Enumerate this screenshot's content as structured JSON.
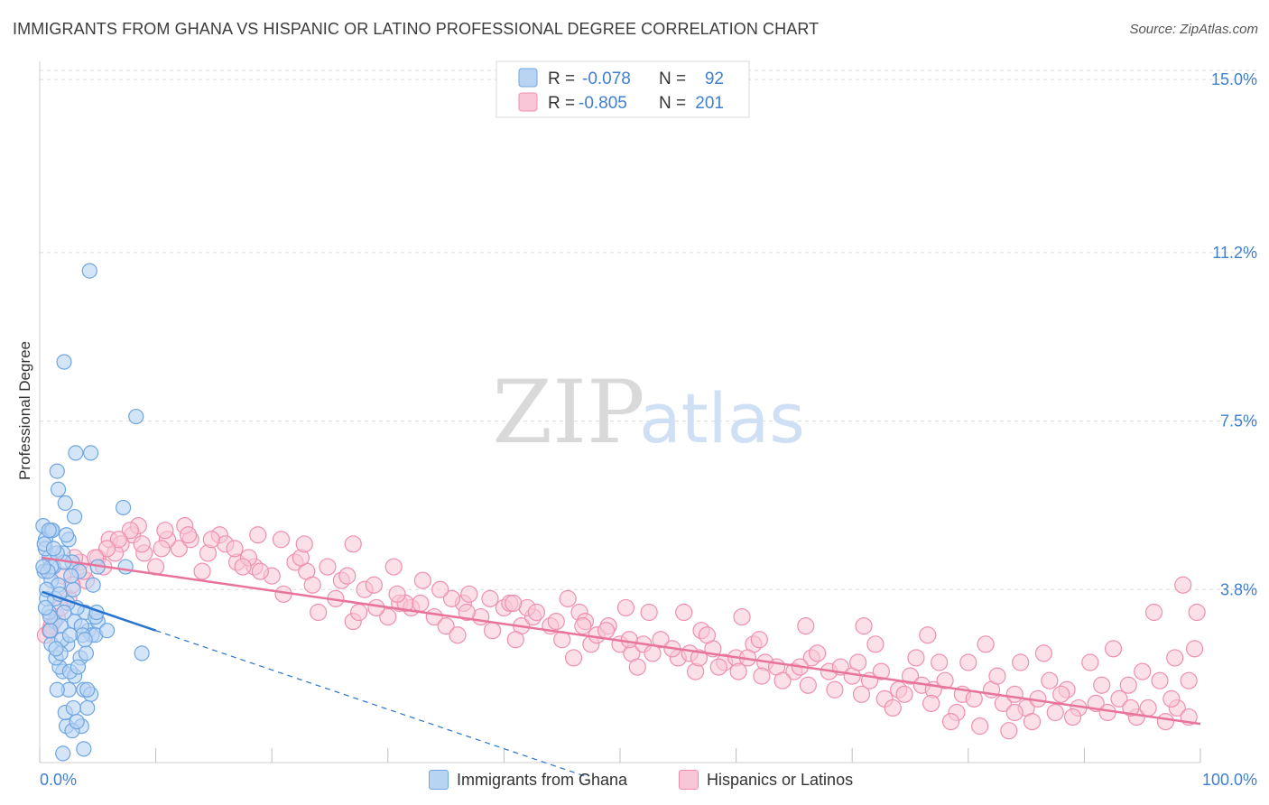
{
  "title": "IMMIGRANTS FROM GHANA VS HISPANIC OR LATINO PROFESSIONAL DEGREE CORRELATION CHART",
  "source": "Source: ZipAtlas.com",
  "watermark": {
    "zip": "ZIP",
    "atlas": "atlas"
  },
  "legend": {
    "r_label": "R =",
    "n_label": "N =",
    "rows": [
      {
        "r": "-0.078",
        "n": "92"
      },
      {
        "r": "-0.805",
        "n": "201"
      }
    ]
  },
  "bottom_legend": [
    "Immigrants from Ghana",
    "Hispanics or Latinos"
  ],
  "colors": {
    "blue_fill": "#b9d4f3",
    "blue_stroke": "#6ea6e2",
    "blue_line": "#2874d0",
    "pink_fill": "#f8c6d6",
    "pink_stroke": "#ef8fb0",
    "pink_line": "#e8739b",
    "tick_text": "#3f7fd0",
    "grid": "#dcdcdc"
  },
  "chart_data": {
    "type": "scatter",
    "title": "IMMIGRANTS FROM GHANA VS HISPANIC OR LATINO PROFESSIONAL DEGREE CORRELATION CHART",
    "xlabel": "",
    "ylabel": "Professional Degree",
    "xlim": [
      0,
      100
    ],
    "ylim": [
      0,
      15.4
    ],
    "x_tick_labels": [
      "0.0%",
      "100.0%"
    ],
    "y_ticks": [
      {
        "value": 3.8,
        "label": "3.8%"
      },
      {
        "value": 7.5,
        "label": "7.5%"
      },
      {
        "value": 11.2,
        "label": "11.2%"
      },
      {
        "value": 15.0,
        "label": "15.0%"
      }
    ],
    "series": [
      {
        "name": "Immigrants from Ghana",
        "R": -0.078,
        "N": 92,
        "trend": {
          "x0": 0.2,
          "y0": 3.75,
          "x1": 10.0,
          "y1": 2.9,
          "dash_to_x": 47.0,
          "dash_to_y": -0.3
        },
        "points": [
          [
            0.3,
            5.2
          ],
          [
            0.5,
            4.9
          ],
          [
            0.8,
            4.5
          ],
          [
            1.0,
            5.1
          ],
          [
            0.4,
            4.2
          ],
          [
            0.6,
            3.6
          ],
          [
            1.2,
            4.3
          ],
          [
            1.5,
            6.4
          ],
          [
            1.6,
            6.0
          ],
          [
            2.2,
            5.7
          ],
          [
            2.0,
            4.6
          ],
          [
            1.0,
            4.0
          ],
          [
            1.3,
            3.1
          ],
          [
            2.5,
            4.9
          ],
          [
            3.0,
            5.4
          ],
          [
            2.8,
            4.4
          ],
          [
            3.4,
            4.2
          ],
          [
            3.9,
            3.3
          ],
          [
            4.2,
            2.9
          ],
          [
            4.5,
            2.8
          ],
          [
            3.5,
            2.3
          ],
          [
            2.0,
            2.0
          ],
          [
            2.5,
            1.6
          ],
          [
            3.0,
            1.9
          ],
          [
            3.8,
            1.6
          ],
          [
            4.4,
            1.5
          ],
          [
            2.3,
            0.8
          ],
          [
            3.6,
            0.8
          ],
          [
            3.8,
            0.3
          ],
          [
            2.0,
            0.2
          ],
          [
            4.3,
            10.8
          ],
          [
            2.1,
            8.8
          ],
          [
            8.3,
            7.6
          ],
          [
            4.4,
            6.8
          ],
          [
            3.1,
            6.8
          ],
          [
            7.2,
            5.6
          ],
          [
            5.0,
            4.3
          ],
          [
            7.4,
            4.3
          ],
          [
            5.0,
            3.1
          ],
          [
            2.4,
            2.6
          ],
          [
            1.7,
            2.1
          ],
          [
            1.5,
            1.6
          ],
          [
            2.2,
            1.1
          ],
          [
            4.1,
            1.2
          ],
          [
            1.0,
            2.6
          ],
          [
            0.8,
            3.3
          ],
          [
            1.4,
            2.3
          ],
          [
            2.9,
            3.8
          ],
          [
            1.8,
            3.0
          ],
          [
            0.9,
            2.9
          ],
          [
            4.8,
            3.2
          ],
          [
            4.8,
            2.8
          ],
          [
            2.1,
            4.4
          ],
          [
            0.5,
            4.7
          ],
          [
            1.1,
            5.1
          ],
          [
            1.5,
            4.6
          ],
          [
            2.7,
            4.1
          ],
          [
            3.2,
            3.4
          ],
          [
            1.9,
            2.7
          ],
          [
            1.0,
            4.3
          ],
          [
            0.4,
            4.8
          ],
          [
            0.7,
            4.2
          ],
          [
            1.6,
            3.9
          ],
          [
            2.4,
            3.5
          ],
          [
            3.0,
            3.1
          ],
          [
            3.6,
            3.0
          ],
          [
            4.0,
            2.4
          ],
          [
            4.9,
            3.3
          ],
          [
            5.8,
            2.9
          ],
          [
            8.8,
            2.4
          ],
          [
            1.3,
            3.6
          ],
          [
            0.9,
            3.2
          ],
          [
            2.6,
            2.0
          ],
          [
            3.3,
            2.1
          ],
          [
            4.1,
            1.6
          ],
          [
            2.9,
            1.2
          ],
          [
            2.8,
            0.7
          ],
          [
            3.2,
            0.9
          ],
          [
            1.8,
            2.4
          ],
          [
            0.6,
            3.8
          ],
          [
            0.3,
            4.3
          ],
          [
            1.2,
            4.7
          ],
          [
            2.3,
            5.0
          ],
          [
            0.8,
            5.1
          ],
          [
            1.7,
            3.7
          ],
          [
            2.1,
            3.3
          ],
          [
            3.7,
            2.8
          ],
          [
            4.6,
            3.9
          ],
          [
            1.4,
            2.5
          ],
          [
            2.6,
            2.8
          ],
          [
            3.9,
            2.7
          ],
          [
            0.5,
            3.4
          ]
        ]
      },
      {
        "name": "Hispanics or Latinos",
        "R": -0.805,
        "N": 201,
        "trend": {
          "x0": 0.2,
          "y0": 4.5,
          "x1": 100.0,
          "y1": 0.85
        },
        "points": [
          [
            0.5,
            2.8
          ],
          [
            1.5,
            3.2
          ],
          [
            2.0,
            4.1
          ],
          [
            3.5,
            4.4
          ],
          [
            5.0,
            4.5
          ],
          [
            6.0,
            4.9
          ],
          [
            8.0,
            5.0
          ],
          [
            9.0,
            4.6
          ],
          [
            10.0,
            4.3
          ],
          [
            12.0,
            4.7
          ],
          [
            13.0,
            4.9
          ],
          [
            14.0,
            4.2
          ],
          [
            15.5,
            5.0
          ],
          [
            17.0,
            4.4
          ],
          [
            18.5,
            4.3
          ],
          [
            20.0,
            4.1
          ],
          [
            21.0,
            3.7
          ],
          [
            22.0,
            4.4
          ],
          [
            24.0,
            3.3
          ],
          [
            25.5,
            3.6
          ],
          [
            27.0,
            3.1
          ],
          [
            28.0,
            3.8
          ],
          [
            30.0,
            3.2
          ],
          [
            31.0,
            3.5
          ],
          [
            33.0,
            4.0
          ],
          [
            34.0,
            3.2
          ],
          [
            35.0,
            3.0
          ],
          [
            36.5,
            3.5
          ],
          [
            38.0,
            3.2
          ],
          [
            39.0,
            2.9
          ],
          [
            40.0,
            3.4
          ],
          [
            41.5,
            3.0
          ],
          [
            42.5,
            3.2
          ],
          [
            44.0,
            3.0
          ],
          [
            45.0,
            2.7
          ],
          [
            46.5,
            3.3
          ],
          [
            47.5,
            2.6
          ],
          [
            48.0,
            2.8
          ],
          [
            49.0,
            3.0
          ],
          [
            50.0,
            2.6
          ],
          [
            51.0,
            2.4
          ],
          [
            52.0,
            2.6
          ],
          [
            53.5,
            2.7
          ],
          [
            55.0,
            2.3
          ],
          [
            56.0,
            2.4
          ],
          [
            57.0,
            2.9
          ],
          [
            58.0,
            2.5
          ],
          [
            59.0,
            2.2
          ],
          [
            60.0,
            2.3
          ],
          [
            61.5,
            2.6
          ],
          [
            62.5,
            2.2
          ],
          [
            63.5,
            2.1
          ],
          [
            65.0,
            2.0
          ],
          [
            66.5,
            2.3
          ],
          [
            68.0,
            2.0
          ],
          [
            69.0,
            2.1
          ],
          [
            70.0,
            1.9
          ],
          [
            71.5,
            1.8
          ],
          [
            72.5,
            2.0
          ],
          [
            74.0,
            1.6
          ],
          [
            75.0,
            1.9
          ],
          [
            76.0,
            1.7
          ],
          [
            77.0,
            1.6
          ],
          [
            78.0,
            1.8
          ],
          [
            79.5,
            1.5
          ],
          [
            80.5,
            1.4
          ],
          [
            82.0,
            1.6
          ],
          [
            83.0,
            1.3
          ],
          [
            84.0,
            1.5
          ],
          [
            85.0,
            1.2
          ],
          [
            86.0,
            1.4
          ],
          [
            87.5,
            1.1
          ],
          [
            88.5,
            1.6
          ],
          [
            89.5,
            1.2
          ],
          [
            91.0,
            1.3
          ],
          [
            92.0,
            1.1
          ],
          [
            93.0,
            1.4
          ],
          [
            94.5,
            1.0
          ],
          [
            95.5,
            1.2
          ],
          [
            97.0,
            0.9
          ],
          [
            98.0,
            1.2
          ],
          [
            99.0,
            1.0
          ],
          [
            5.5,
            4.3
          ],
          [
            7.0,
            4.8
          ],
          [
            11.0,
            4.9
          ],
          [
            16.0,
            4.8
          ],
          [
            19.0,
            4.2
          ],
          [
            23.0,
            4.2
          ],
          [
            26.0,
            4.0
          ],
          [
            29.0,
            3.4
          ],
          [
            32.0,
            3.4
          ],
          [
            37.0,
            3.7
          ],
          [
            42.0,
            3.4
          ],
          [
            47.0,
            3.1
          ],
          [
            52.5,
            3.3
          ],
          [
            57.5,
            2.8
          ],
          [
            62.0,
            2.7
          ],
          [
            67.0,
            2.4
          ],
          [
            72.0,
            2.6
          ],
          [
            77.5,
            2.2
          ],
          [
            82.5,
            1.9
          ],
          [
            87.0,
            1.8
          ],
          [
            91.5,
            1.7
          ],
          [
            96.5,
            1.8
          ],
          [
            99.5,
            2.5
          ],
          [
            98.5,
            3.9
          ],
          [
            96.0,
            3.3
          ],
          [
            92.5,
            2.5
          ],
          [
            84.5,
            2.2
          ],
          [
            80.0,
            2.2
          ],
          [
            75.5,
            2.3
          ],
          [
            70.5,
            2.2
          ],
          [
            65.5,
            2.1
          ],
          [
            61.0,
            2.3
          ],
          [
            56.5,
            2.0
          ],
          [
            51.5,
            2.1
          ],
          [
            46.0,
            2.3
          ],
          [
            41.0,
            2.7
          ],
          [
            36.0,
            2.8
          ],
          [
            31.5,
            3.5
          ],
          [
            27.5,
            3.3
          ],
          [
            23.5,
            3.9
          ],
          [
            18.0,
            4.5
          ],
          [
            14.5,
            4.6
          ],
          [
            10.5,
            4.7
          ],
          [
            6.5,
            4.6
          ],
          [
            4.0,
            4.0
          ],
          [
            2.5,
            3.6
          ],
          [
            1.0,
            3.0
          ],
          [
            3.0,
            4.5
          ],
          [
            8.5,
            5.2
          ],
          [
            12.5,
            5.2
          ],
          [
            17.5,
            4.3
          ],
          [
            22.5,
            4.5
          ],
          [
            27.0,
            4.8
          ],
          [
            30.5,
            4.3
          ],
          [
            35.5,
            3.6
          ],
          [
            40.5,
            3.5
          ],
          [
            45.5,
            3.6
          ],
          [
            50.5,
            3.4
          ],
          [
            55.5,
            3.3
          ],
          [
            60.5,
            3.2
          ],
          [
            66.0,
            3.0
          ],
          [
            71.0,
            3.0
          ],
          [
            76.5,
            2.8
          ],
          [
            81.5,
            2.6
          ],
          [
            86.5,
            2.4
          ],
          [
            90.5,
            2.2
          ],
          [
            95.0,
            2.0
          ],
          [
            99.0,
            1.8
          ],
          [
            97.5,
            1.4
          ],
          [
            94.0,
            1.2
          ],
          [
            89.0,
            1.0
          ],
          [
            85.5,
            0.9
          ],
          [
            83.5,
            0.7
          ],
          [
            81.0,
            0.8
          ],
          [
            79.0,
            1.1
          ],
          [
            76.8,
            1.3
          ],
          [
            74.5,
            1.5
          ],
          [
            72.8,
            1.4
          ],
          [
            70.8,
            1.5
          ],
          [
            68.5,
            1.6
          ],
          [
            66.2,
            1.7
          ],
          [
            64.0,
            1.8
          ],
          [
            62.2,
            1.9
          ],
          [
            60.2,
            2.0
          ],
          [
            58.5,
            2.1
          ],
          [
            56.8,
            2.3
          ],
          [
            54.5,
            2.5
          ],
          [
            52.8,
            2.4
          ],
          [
            50.8,
            2.7
          ],
          [
            48.8,
            2.9
          ],
          [
            46.8,
            3.0
          ],
          [
            44.5,
            3.1
          ],
          [
            42.8,
            3.3
          ],
          [
            40.8,
            3.5
          ],
          [
            38.8,
            3.6
          ],
          [
            36.8,
            3.3
          ],
          [
            34.5,
            3.8
          ],
          [
            32.8,
            3.5
          ],
          [
            30.8,
            3.7
          ],
          [
            28.8,
            3.9
          ],
          [
            26.5,
            4.1
          ],
          [
            24.8,
            4.3
          ],
          [
            22.8,
            4.8
          ],
          [
            20.8,
            4.9
          ],
          [
            18.8,
            5.0
          ],
          [
            16.8,
            4.7
          ],
          [
            14.8,
            4.9
          ],
          [
            12.8,
            5.0
          ],
          [
            10.8,
            5.1
          ],
          [
            8.8,
            4.8
          ],
          [
            7.8,
            5.1
          ],
          [
            6.8,
            4.9
          ],
          [
            5.8,
            4.7
          ],
          [
            4.8,
            4.5
          ],
          [
            3.8,
            4.2
          ],
          [
            2.8,
            3.9
          ],
          [
            1.8,
            3.4
          ],
          [
            0.9,
            2.9
          ],
          [
            99.7,
            3.3
          ],
          [
            97.8,
            2.3
          ],
          [
            93.8,
            1.7
          ],
          [
            88.0,
            1.5
          ],
          [
            84.0,
            1.1
          ],
          [
            78.5,
            0.9
          ],
          [
            73.5,
            1.2
          ]
        ]
      }
    ]
  }
}
